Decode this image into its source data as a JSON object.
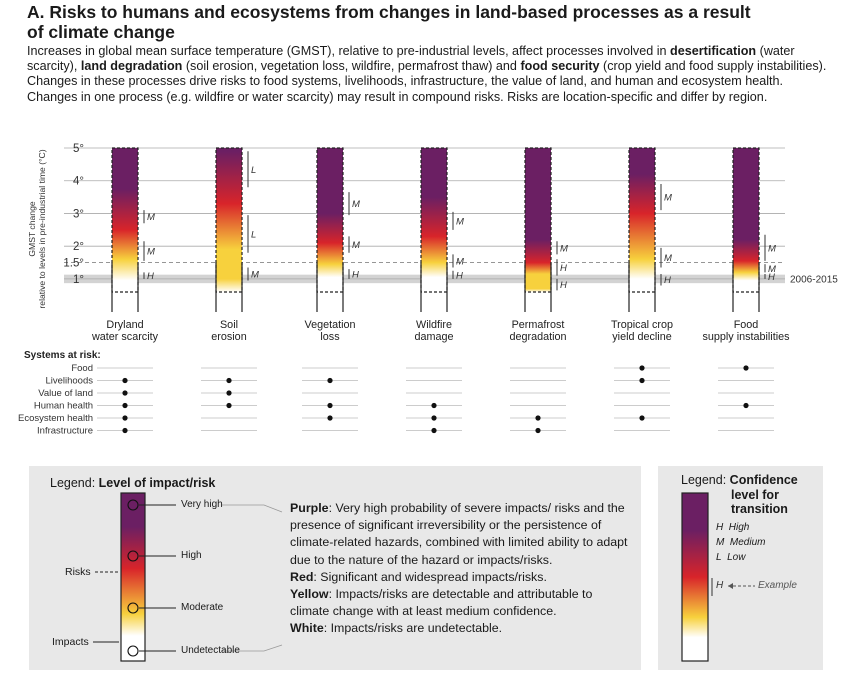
{
  "title_line1": "A. Risks to humans and ecosystems from changes in land-based processes as a result",
  "title_line2": "of climate change",
  "intro": {
    "s1": "Increases in global mean surface temperature (GMST), relative to pre-industrial levels, affect processes involved in ",
    "b1": "desertification",
    "s2": " (water scarcity), ",
    "b2": "land degradation",
    "s3": " (soil erosion, vegetation loss, wildfire, permafrost thaw) and ",
    "b3": "food security",
    "s4": " (crop yield and food supply instabilities). Changes in these processes drive risks to food systems, livelihoods, infrastructure, the value of land, and human and ecosystem health. Changes in one process (e.g. wildfire or water scarcity) may result in compound risks. Risks are location-specific and differ by region."
  },
  "chart_data": {
    "type": "table",
    "ylabel_line1": "GMST change",
    "ylabel_line2": "relative to levels in pre-industrial time (°C)",
    "ylim": [
      0.6,
      5.0
    ],
    "yticks": [
      {
        "value": 1,
        "label": "1°"
      },
      {
        "value": 1.5,
        "label": "1.5°"
      },
      {
        "value": 2,
        "label": "2°"
      },
      {
        "value": 3,
        "label": "3°"
      },
      {
        "value": 4,
        "label": "4°"
      },
      {
        "value": 5,
        "label": "5°"
      }
    ],
    "reference_band": {
      "from": 0.87,
      "to": 1.13,
      "label": "2006-2015"
    },
    "dashed_line": 1.5,
    "colors": {
      "purple": "#6b1f63",
      "red": "#d8242a",
      "yellow": "#f7d13d",
      "white": "#ffffff"
    },
    "columns": [
      {
        "line1": "Dryland",
        "line2": "water scarcity",
        "stops": [
          [
            0.6,
            "white"
          ],
          [
            0.95,
            "white"
          ],
          [
            1.6,
            "yellow"
          ],
          [
            2.5,
            "red"
          ],
          [
            3.75,
            "purple"
          ],
          [
            5.0,
            "purple"
          ]
        ],
        "markers": [
          {
            "from": 1.0,
            "to": 1.2,
            "label": "H"
          },
          {
            "from": 1.55,
            "to": 2.15,
            "label": "M"
          },
          {
            "from": 2.7,
            "to": 3.1,
            "label": "M"
          }
        ]
      },
      {
        "line1": "Soil",
        "line2": "erosion",
        "stops": [
          [
            0.6,
            "white"
          ],
          [
            1.0,
            "yellow"
          ],
          [
            1.9,
            "yellow"
          ],
          [
            3.3,
            "red"
          ],
          [
            4.9,
            "purple"
          ],
          [
            5.0,
            "purple"
          ]
        ],
        "markers": [
          {
            "from": 0.95,
            "to": 1.35,
            "label": "M"
          },
          {
            "from": 1.8,
            "to": 2.95,
            "label": "L"
          },
          {
            "from": 3.8,
            "to": 4.9,
            "label": "L"
          }
        ]
      },
      {
        "line1": "Vegetation",
        "line2": "loss",
        "stops": [
          [
            0.6,
            "white"
          ],
          [
            1.05,
            "white"
          ],
          [
            1.45,
            "yellow"
          ],
          [
            2.1,
            "red"
          ],
          [
            3.0,
            "purple"
          ],
          [
            5.0,
            "purple"
          ]
        ],
        "markers": [
          {
            "from": 1.0,
            "to": 1.3,
            "label": "H"
          },
          {
            "from": 1.8,
            "to": 2.3,
            "label": "M"
          },
          {
            "from": 2.95,
            "to": 3.65,
            "label": "M"
          }
        ]
      },
      {
        "line1": "Wildfire",
        "line2": "damage",
        "stops": [
          [
            0.6,
            "white"
          ],
          [
            1.05,
            "white"
          ],
          [
            1.5,
            "yellow"
          ],
          [
            2.3,
            "red"
          ],
          [
            3.5,
            "purple"
          ],
          [
            5.0,
            "purple"
          ]
        ],
        "markers": [
          {
            "from": 1.0,
            "to": 1.25,
            "label": "H"
          },
          {
            "from": 1.35,
            "to": 1.75,
            "label": "M"
          },
          {
            "from": 2.5,
            "to": 3.05,
            "label": "M"
          }
        ]
      },
      {
        "line1": "Permafrost",
        "line2": "degradation",
        "stops": [
          [
            0.6,
            "white"
          ],
          [
            0.7,
            "yellow"
          ],
          [
            1.15,
            "yellow"
          ],
          [
            1.5,
            "red"
          ],
          [
            2.2,
            "purple"
          ],
          [
            5.0,
            "purple"
          ]
        ],
        "markers": [
          {
            "from": 0.65,
            "to": 1.0,
            "label": "H"
          },
          {
            "from": 1.1,
            "to": 1.6,
            "label": "H"
          },
          {
            "from": 1.75,
            "to": 2.15,
            "label": "M"
          }
        ]
      },
      {
        "line1": "Tropical crop",
        "line2": "yield decline",
        "stops": [
          [
            0.6,
            "white"
          ],
          [
            1.0,
            "white"
          ],
          [
            1.6,
            "yellow"
          ],
          [
            3.0,
            "red"
          ],
          [
            4.2,
            "purple"
          ],
          [
            5.0,
            "purple"
          ]
        ],
        "markers": [
          {
            "from": 0.8,
            "to": 1.15,
            "label": "H"
          },
          {
            "from": 1.35,
            "to": 1.95,
            "label": "M"
          },
          {
            "from": 3.1,
            "to": 3.9,
            "label": "M"
          }
        ]
      },
      {
        "line1": "Food",
        "line2": "supply instabilities",
        "stops": [
          [
            0.6,
            "white"
          ],
          [
            0.95,
            "white"
          ],
          [
            1.2,
            "yellow"
          ],
          [
            1.55,
            "red"
          ],
          [
            2.2,
            "purple"
          ],
          [
            5.0,
            "purple"
          ]
        ],
        "markers": [
          {
            "from": 1.0,
            "to": 1.15,
            "label": "H"
          },
          {
            "from": 1.2,
            "to": 1.45,
            "label": "M"
          },
          {
            "from": 1.55,
            "to": 2.35,
            "label": "M"
          }
        ]
      }
    ],
    "systems_title": "Systems at risk:",
    "systems": [
      "Food",
      "Livelihoods",
      "Value of land",
      "Human health",
      "Ecosystem health",
      "Infrastructure"
    ],
    "systems_matrix": [
      [
        0,
        0,
        0,
        0,
        0,
        1,
        1
      ],
      [
        1,
        1,
        1,
        0,
        0,
        1,
        0
      ],
      [
        1,
        1,
        0,
        0,
        0,
        0,
        0
      ],
      [
        1,
        1,
        1,
        1,
        0,
        0,
        1
      ],
      [
        1,
        0,
        1,
        1,
        1,
        1,
        0
      ],
      [
        1,
        0,
        0,
        1,
        1,
        0,
        0
      ]
    ]
  },
  "legend_impact": {
    "title_prefix": "Legend: ",
    "title_bold": "Level of impact/risk",
    "levels": [
      "Very high",
      "High",
      "Moderate",
      "Undetectable"
    ],
    "risks_label": "Risks",
    "impacts_label": "Impacts",
    "desc": {
      "purple_b": "Purple",
      "purple_t": ": Very high probability of severe impacts/ risks and the presence of significant irreversibility or the persistence of climate-related hazards, combined with limited ability to adapt due to the nature of the hazard or impacts/risks.",
      "red_b": "Red",
      "red_t": ": Significant and widespread impacts/risks.",
      "yellow_b": "Yellow",
      "yellow_t": ": Impacts/risks are detectable and attributable to climate change with at least medium confidence.",
      "white_b": "White",
      "white_t": ": Impacts/risks are undetectable."
    }
  },
  "legend_confidence": {
    "title_prefix": "Legend: ",
    "title_bold_1": "Confidence",
    "title_bold_2": "level for",
    "title_bold_3": "transition",
    "items": [
      {
        "code": "H",
        "text": "High"
      },
      {
        "code": "M",
        "text": "Medium"
      },
      {
        "code": "L",
        "text": "Low"
      }
    ],
    "example_code": "H",
    "example_label": "Example"
  }
}
